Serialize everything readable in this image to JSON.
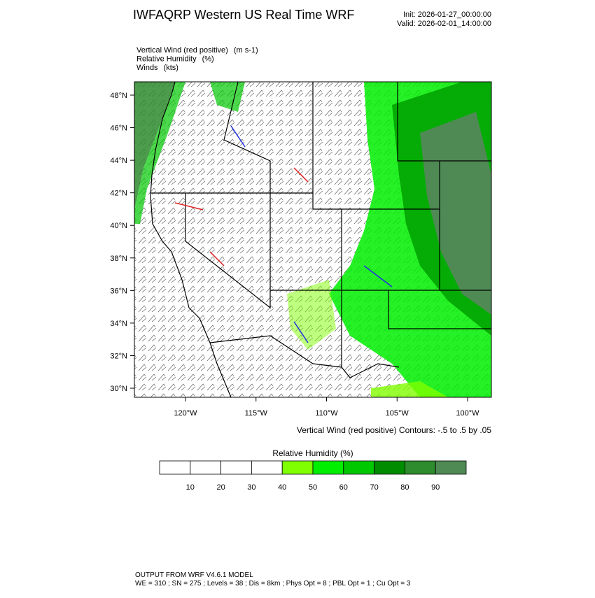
{
  "header": {
    "title": "IWFAQRP Western US Real Time WRF",
    "init": "Init: 2026-01-27_00:00:00",
    "valid": "Valid: 2026-02-01_14:00:00"
  },
  "fields": [
    {
      "name": "Vertical Wind (red positive)",
      "unit": "(m s-1)"
    },
    {
      "name": "Relative Humidity",
      "unit": "(%)"
    },
    {
      "name": "Winds",
      "unit": "(kts)"
    }
  ],
  "map": {
    "lat_ticks": [
      {
        "value": 48,
        "label": "48°N"
      },
      {
        "value": 46,
        "label": "46°N"
      },
      {
        "value": 44,
        "label": "44°N"
      },
      {
        "value": 42,
        "label": "42°N"
      },
      {
        "value": 40,
        "label": "40°N"
      },
      {
        "value": 38,
        "label": "38°N"
      },
      {
        "value": 36,
        "label": "36°N"
      },
      {
        "value": 34,
        "label": "34°N"
      },
      {
        "value": 32,
        "label": "32°N"
      },
      {
        "value": 30,
        "label": "30°N"
      }
    ],
    "lon_ticks": [
      {
        "value": -120,
        "label": "120°W"
      },
      {
        "value": -115,
        "label": "115°W"
      },
      {
        "value": -110,
        "label": "110°W"
      },
      {
        "value": -105,
        "label": "105°W"
      },
      {
        "value": -100,
        "label": "100°W"
      }
    ],
    "contour_caption": "Vertical Wind (red positive) Contours: -.5 to .5 by .05"
  },
  "colorbar": {
    "title": "Relative Humidity  (%)",
    "labels": [
      "10",
      "20",
      "30",
      "40",
      "50",
      "60",
      "70",
      "80",
      "90"
    ],
    "colors": [
      "#ffffff",
      "#ffffff",
      "#ffffff",
      "#ffffff",
      "#7fff00",
      "#00ee00",
      "#00c800",
      "#008c00",
      "#2e8b2e",
      "#4f8a55"
    ]
  },
  "footer": {
    "line1": "OUTPUT FROM WRF V4.6.1 MODEL",
    "line2": "WE = 310 ; SN = 275 ; Levels = 38 ; Dis = 8km ; Phys Opt = 8 ; PBL Opt = 1 ; Cu Opt = 3"
  }
}
